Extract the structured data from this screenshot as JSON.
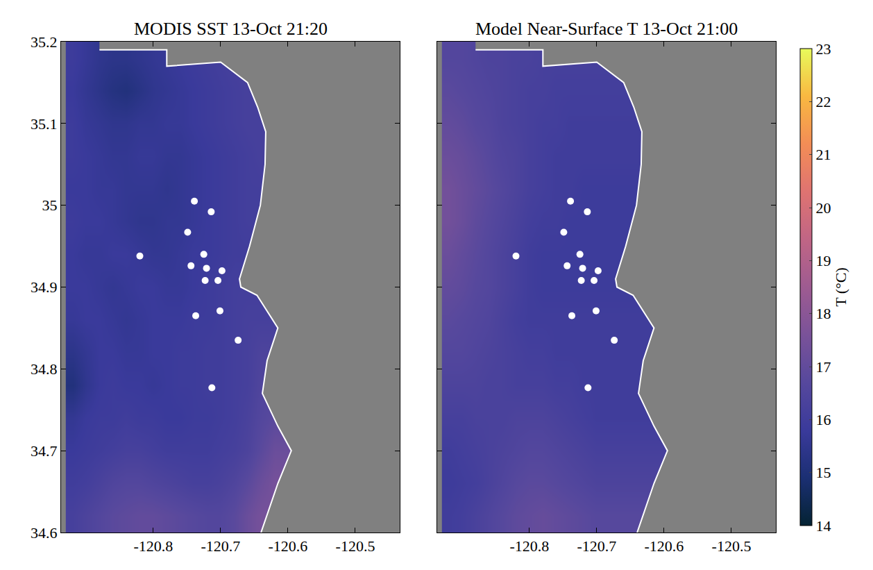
{
  "chart_data": [
    {
      "type": "heatmap",
      "title": "MODIS SST 13-Oct 21:20",
      "x": [
        -120.92,
        -120.9,
        -120.88,
        -120.86,
        -120.84,
        -120.82,
        -120.8,
        -120.78,
        -120.76,
        -120.74,
        -120.72,
        -120.7,
        -120.68,
        -120.66,
        -120.64,
        -120.62,
        -120.6
      ],
      "y": [
        34.62,
        34.66,
        34.7,
        34.74,
        34.78,
        34.82,
        34.86,
        34.9,
        34.94,
        34.98,
        35.02,
        35.06,
        35.1,
        35.14,
        35.18
      ],
      "z": [
        [
          16.2,
          16.4,
          16.6,
          16.8,
          16.9,
          17.0,
          17.0,
          16.9,
          16.8,
          16.7,
          16.6,
          16.6,
          16.8,
          17.2,
          17.5,
          17.5,
          17.5
        ],
        [
          16.0,
          16.1,
          16.3,
          16.5,
          16.6,
          16.6,
          16.5,
          16.4,
          16.3,
          16.2,
          16.2,
          16.3,
          16.5,
          16.8,
          17.2,
          17.5,
          17.5
        ],
        [
          15.8,
          15.9,
          16.0,
          16.1,
          16.2,
          16.2,
          16.1,
          16.0,
          16.0,
          16.0,
          16.0,
          16.1,
          16.2,
          16.4,
          16.8,
          17.2,
          17.2
        ],
        [
          15.6,
          15.8,
          15.9,
          15.9,
          16.0,
          15.9,
          15.9,
          15.8,
          15.8,
          15.9,
          15.9,
          16.0,
          16.1,
          16.3,
          16.6,
          16.8,
          16.8
        ],
        [
          15.1,
          15.5,
          15.8,
          15.9,
          15.8,
          15.8,
          15.7,
          15.8,
          15.9,
          15.9,
          16.0,
          16.0,
          16.1,
          16.2,
          16.5,
          16.5,
          16.5
        ],
        [
          15.4,
          15.6,
          15.8,
          15.8,
          15.7,
          15.7,
          15.8,
          15.8,
          15.9,
          15.9,
          16.0,
          16.0,
          16.1,
          16.2,
          16.4,
          16.4,
          16.4
        ],
        [
          15.7,
          15.8,
          15.8,
          15.7,
          15.6,
          15.7,
          15.8,
          15.8,
          15.8,
          15.9,
          15.9,
          16.0,
          16.1,
          16.2,
          16.2,
          16.2,
          16.2
        ],
        [
          15.8,
          15.8,
          15.7,
          15.6,
          15.7,
          15.8,
          15.8,
          15.7,
          15.7,
          15.8,
          15.9,
          16.0,
          16.1,
          16.1,
          16.1,
          16.1,
          16.1
        ],
        [
          15.8,
          15.7,
          15.7,
          15.8,
          15.8,
          15.7,
          15.6,
          15.6,
          15.7,
          15.8,
          15.8,
          15.9,
          16.0,
          16.0,
          16.0,
          16.0,
          16.0
        ],
        [
          15.9,
          15.8,
          15.8,
          15.7,
          15.6,
          15.5,
          15.5,
          15.6,
          15.6,
          15.7,
          15.8,
          15.9,
          16.0,
          16.1,
          16.1,
          16.1,
          16.1
        ],
        [
          15.8,
          15.8,
          15.7,
          15.7,
          15.6,
          15.6,
          15.6,
          15.5,
          15.6,
          15.7,
          15.8,
          15.9,
          16.0,
          16.1,
          16.1,
          16.1,
          16.1
        ],
        [
          15.9,
          15.8,
          15.7,
          15.6,
          15.6,
          15.7,
          15.7,
          15.6,
          15.6,
          15.7,
          15.8,
          15.9,
          16.0,
          16.1,
          16.2,
          16.2,
          16.2
        ],
        [
          15.9,
          15.7,
          15.6,
          15.5,
          15.5,
          15.6,
          15.6,
          15.7,
          15.7,
          15.8,
          15.9,
          16.0,
          16.1,
          16.2,
          16.2,
          16.2,
          16.2
        ],
        [
          15.8,
          15.6,
          15.4,
          15.2,
          15.1,
          15.3,
          15.5,
          15.6,
          15.7,
          15.8,
          15.9,
          16.0,
          16.1,
          16.2,
          16.2,
          16.2,
          16.2
        ],
        [
          15.9,
          15.7,
          15.5,
          15.4,
          15.4,
          15.5,
          15.6,
          15.7,
          15.8,
          15.9,
          16.0,
          16.1,
          16.2,
          16.2,
          16.2,
          16.2,
          16.2
        ]
      ],
      "colorbar": {
        "range": [
          14,
          23
        ]
      },
      "xlim": [
        -120.937,
        -120.434
      ],
      "ylim": [
        34.6,
        35.2
      ],
      "xticks": [
        -120.8,
        -120.7,
        -120.6,
        -120.5
      ],
      "yticks": [
        34.6,
        34.7,
        34.8,
        34.9,
        35,
        35.1,
        35.2
      ],
      "tick_labels": true,
      "coastline": {
        "lon": [
          -120.88,
          -120.78,
          -120.78,
          -120.7,
          -120.66,
          -120.645,
          -120.633,
          -120.634,
          -120.641,
          -120.657,
          -120.672,
          -120.67,
          -120.646,
          -120.615,
          -120.631,
          -120.638,
          -120.615,
          -120.595,
          -120.615,
          -120.64
        ],
        "lat": [
          35.19,
          35.19,
          35.17,
          35.175,
          35.15,
          35.12,
          35.09,
          35.05,
          35.0,
          34.95,
          34.91,
          34.9,
          34.89,
          34.85,
          34.81,
          34.77,
          34.73,
          34.7,
          34.66,
          34.6
        ]
      },
      "stations": {
        "lon": [
          -120.739,
          -120.714,
          -120.749,
          -120.725,
          -120.744,
          -120.721,
          -120.698,
          -120.723,
          -120.704,
          -120.82,
          -120.701,
          -120.737,
          -120.674,
          -120.713
        ],
        "lat": [
          35.005,
          34.992,
          34.967,
          34.94,
          34.926,
          34.923,
          34.92,
          34.908,
          34.908,
          34.938,
          34.871,
          34.865,
          34.835,
          34.777
        ]
      }
    },
    {
      "type": "heatmap",
      "title": "Model Near-Surface T 13-Oct 21:00",
      "x": [
        -120.92,
        -120.9,
        -120.88,
        -120.86,
        -120.84,
        -120.82,
        -120.8,
        -120.78,
        -120.76,
        -120.74,
        -120.72,
        -120.7,
        -120.68,
        -120.66,
        -120.64,
        -120.62,
        -120.6
      ],
      "y": [
        34.62,
        34.66,
        34.7,
        34.74,
        34.78,
        34.82,
        34.86,
        34.9,
        34.94,
        34.98,
        35.02,
        35.06,
        35.1,
        35.14,
        35.18
      ],
      "z": [
        [
          16.0,
          16.1,
          16.3,
          16.5,
          16.7,
          16.9,
          17.0,
          17.1,
          17.0,
          16.9,
          16.8,
          16.7,
          16.7,
          16.7,
          16.7,
          16.7,
          16.7
        ],
        [
          15.9,
          16.0,
          16.1,
          16.3,
          16.5,
          16.7,
          16.8,
          16.8,
          16.7,
          16.6,
          16.5,
          16.4,
          16.4,
          16.4,
          16.4,
          16.4,
          16.4
        ],
        [
          16.0,
          16.1,
          16.2,
          16.3,
          16.4,
          16.5,
          16.6,
          16.6,
          16.5,
          16.4,
          16.3,
          16.2,
          16.2,
          16.2,
          16.2,
          16.2,
          16.2
        ],
        [
          16.2,
          16.2,
          16.3,
          16.3,
          16.3,
          16.4,
          16.4,
          16.4,
          16.3,
          16.2,
          16.1,
          16.0,
          16.0,
          16.0,
          16.0,
          16.0,
          16.0
        ],
        [
          16.4,
          16.4,
          16.4,
          16.3,
          16.3,
          16.2,
          16.2,
          16.2,
          16.1,
          16.1,
          16.0,
          16.0,
          16.0,
          16.0,
          16.0,
          16.0,
          16.0
        ],
        [
          16.6,
          16.6,
          16.5,
          16.4,
          16.3,
          16.2,
          16.1,
          16.1,
          16.0,
          16.0,
          16.0,
          16.0,
          16.0,
          16.0,
          16.0,
          16.0,
          16.0
        ],
        [
          16.8,
          16.7,
          16.6,
          16.5,
          16.3,
          16.1,
          16.0,
          16.0,
          16.0,
          16.0,
          16.0,
          16.0,
          16.0,
          16.0,
          16.0,
          16.0,
          16.0
        ],
        [
          17.0,
          16.9,
          16.7,
          16.6,
          16.4,
          16.2,
          16.0,
          15.9,
          15.9,
          15.9,
          15.9,
          15.9,
          15.9,
          15.9,
          15.9,
          15.9,
          15.9
        ],
        [
          17.2,
          17.0,
          16.8,
          16.6,
          16.4,
          16.2,
          16.0,
          15.9,
          15.9,
          15.9,
          15.9,
          15.9,
          15.9,
          15.9,
          15.9,
          15.9,
          15.9
        ],
        [
          17.4,
          17.2,
          16.9,
          16.7,
          16.5,
          16.3,
          16.1,
          16.0,
          16.0,
          15.9,
          15.9,
          15.9,
          15.9,
          15.9,
          15.9,
          15.9,
          15.9
        ],
        [
          17.4,
          17.2,
          17.0,
          16.8,
          16.6,
          16.4,
          16.2,
          16.1,
          16.0,
          16.0,
          15.9,
          15.9,
          15.9,
          15.9,
          15.9,
          15.9,
          15.9
        ],
        [
          17.2,
          17.1,
          16.9,
          16.7,
          16.5,
          16.4,
          16.2,
          16.1,
          16.0,
          16.0,
          16.0,
          16.0,
          16.0,
          16.0,
          16.0,
          16.0,
          16.0
        ],
        [
          17.0,
          16.9,
          16.7,
          16.6,
          16.4,
          16.3,
          16.2,
          16.1,
          16.1,
          16.0,
          16.0,
          16.0,
          16.0,
          16.0,
          16.0,
          16.0,
          16.0
        ],
        [
          16.8,
          16.7,
          16.6,
          16.5,
          16.4,
          16.3,
          16.2,
          16.2,
          16.1,
          16.1,
          16.1,
          16.1,
          16.1,
          16.1,
          16.1,
          16.1,
          16.1
        ],
        [
          16.6,
          16.6,
          16.5,
          16.4,
          16.4,
          16.3,
          16.3,
          16.2,
          16.2,
          16.2,
          16.2,
          16.2,
          16.2,
          16.2,
          16.2,
          16.2,
          16.2
        ]
      ],
      "colorbar": {
        "range": [
          14,
          23
        ],
        "ticks": [
          14,
          15,
          16,
          17,
          18,
          19,
          20,
          21,
          22,
          23
        ],
        "title": "T (°C)"
      },
      "xlim": [
        -120.937,
        -120.434
      ],
      "ylim": [
        34.6,
        35.2
      ],
      "xticks": [
        -120.8,
        -120.7,
        -120.6,
        -120.5
      ],
      "yticks": [
        34.6,
        34.7,
        34.8,
        34.9,
        35,
        35.1,
        35.2
      ],
      "tick_labels": "x",
      "coastline": {
        "lon": [
          -120.88,
          -120.78,
          -120.78,
          -120.7,
          -120.66,
          -120.645,
          -120.633,
          -120.634,
          -120.641,
          -120.657,
          -120.672,
          -120.67,
          -120.646,
          -120.615,
          -120.631,
          -120.638,
          -120.615,
          -120.595,
          -120.615,
          -120.64
        ],
        "lat": [
          35.19,
          35.19,
          35.17,
          35.175,
          35.15,
          35.12,
          35.09,
          35.05,
          35.0,
          34.95,
          34.91,
          34.9,
          34.89,
          34.85,
          34.81,
          34.77,
          34.73,
          34.7,
          34.66,
          34.6
        ]
      },
      "stations": {
        "lon": [
          -120.739,
          -120.714,
          -120.749,
          -120.725,
          -120.744,
          -120.721,
          -120.698,
          -120.723,
          -120.704,
          -120.82,
          -120.701,
          -120.737,
          -120.674,
          -120.713
        ],
        "lat": [
          35.005,
          34.992,
          34.967,
          34.94,
          34.926,
          34.923,
          34.92,
          34.908,
          34.908,
          34.938,
          34.871,
          34.865,
          34.835,
          34.777
        ]
      }
    }
  ]
}
